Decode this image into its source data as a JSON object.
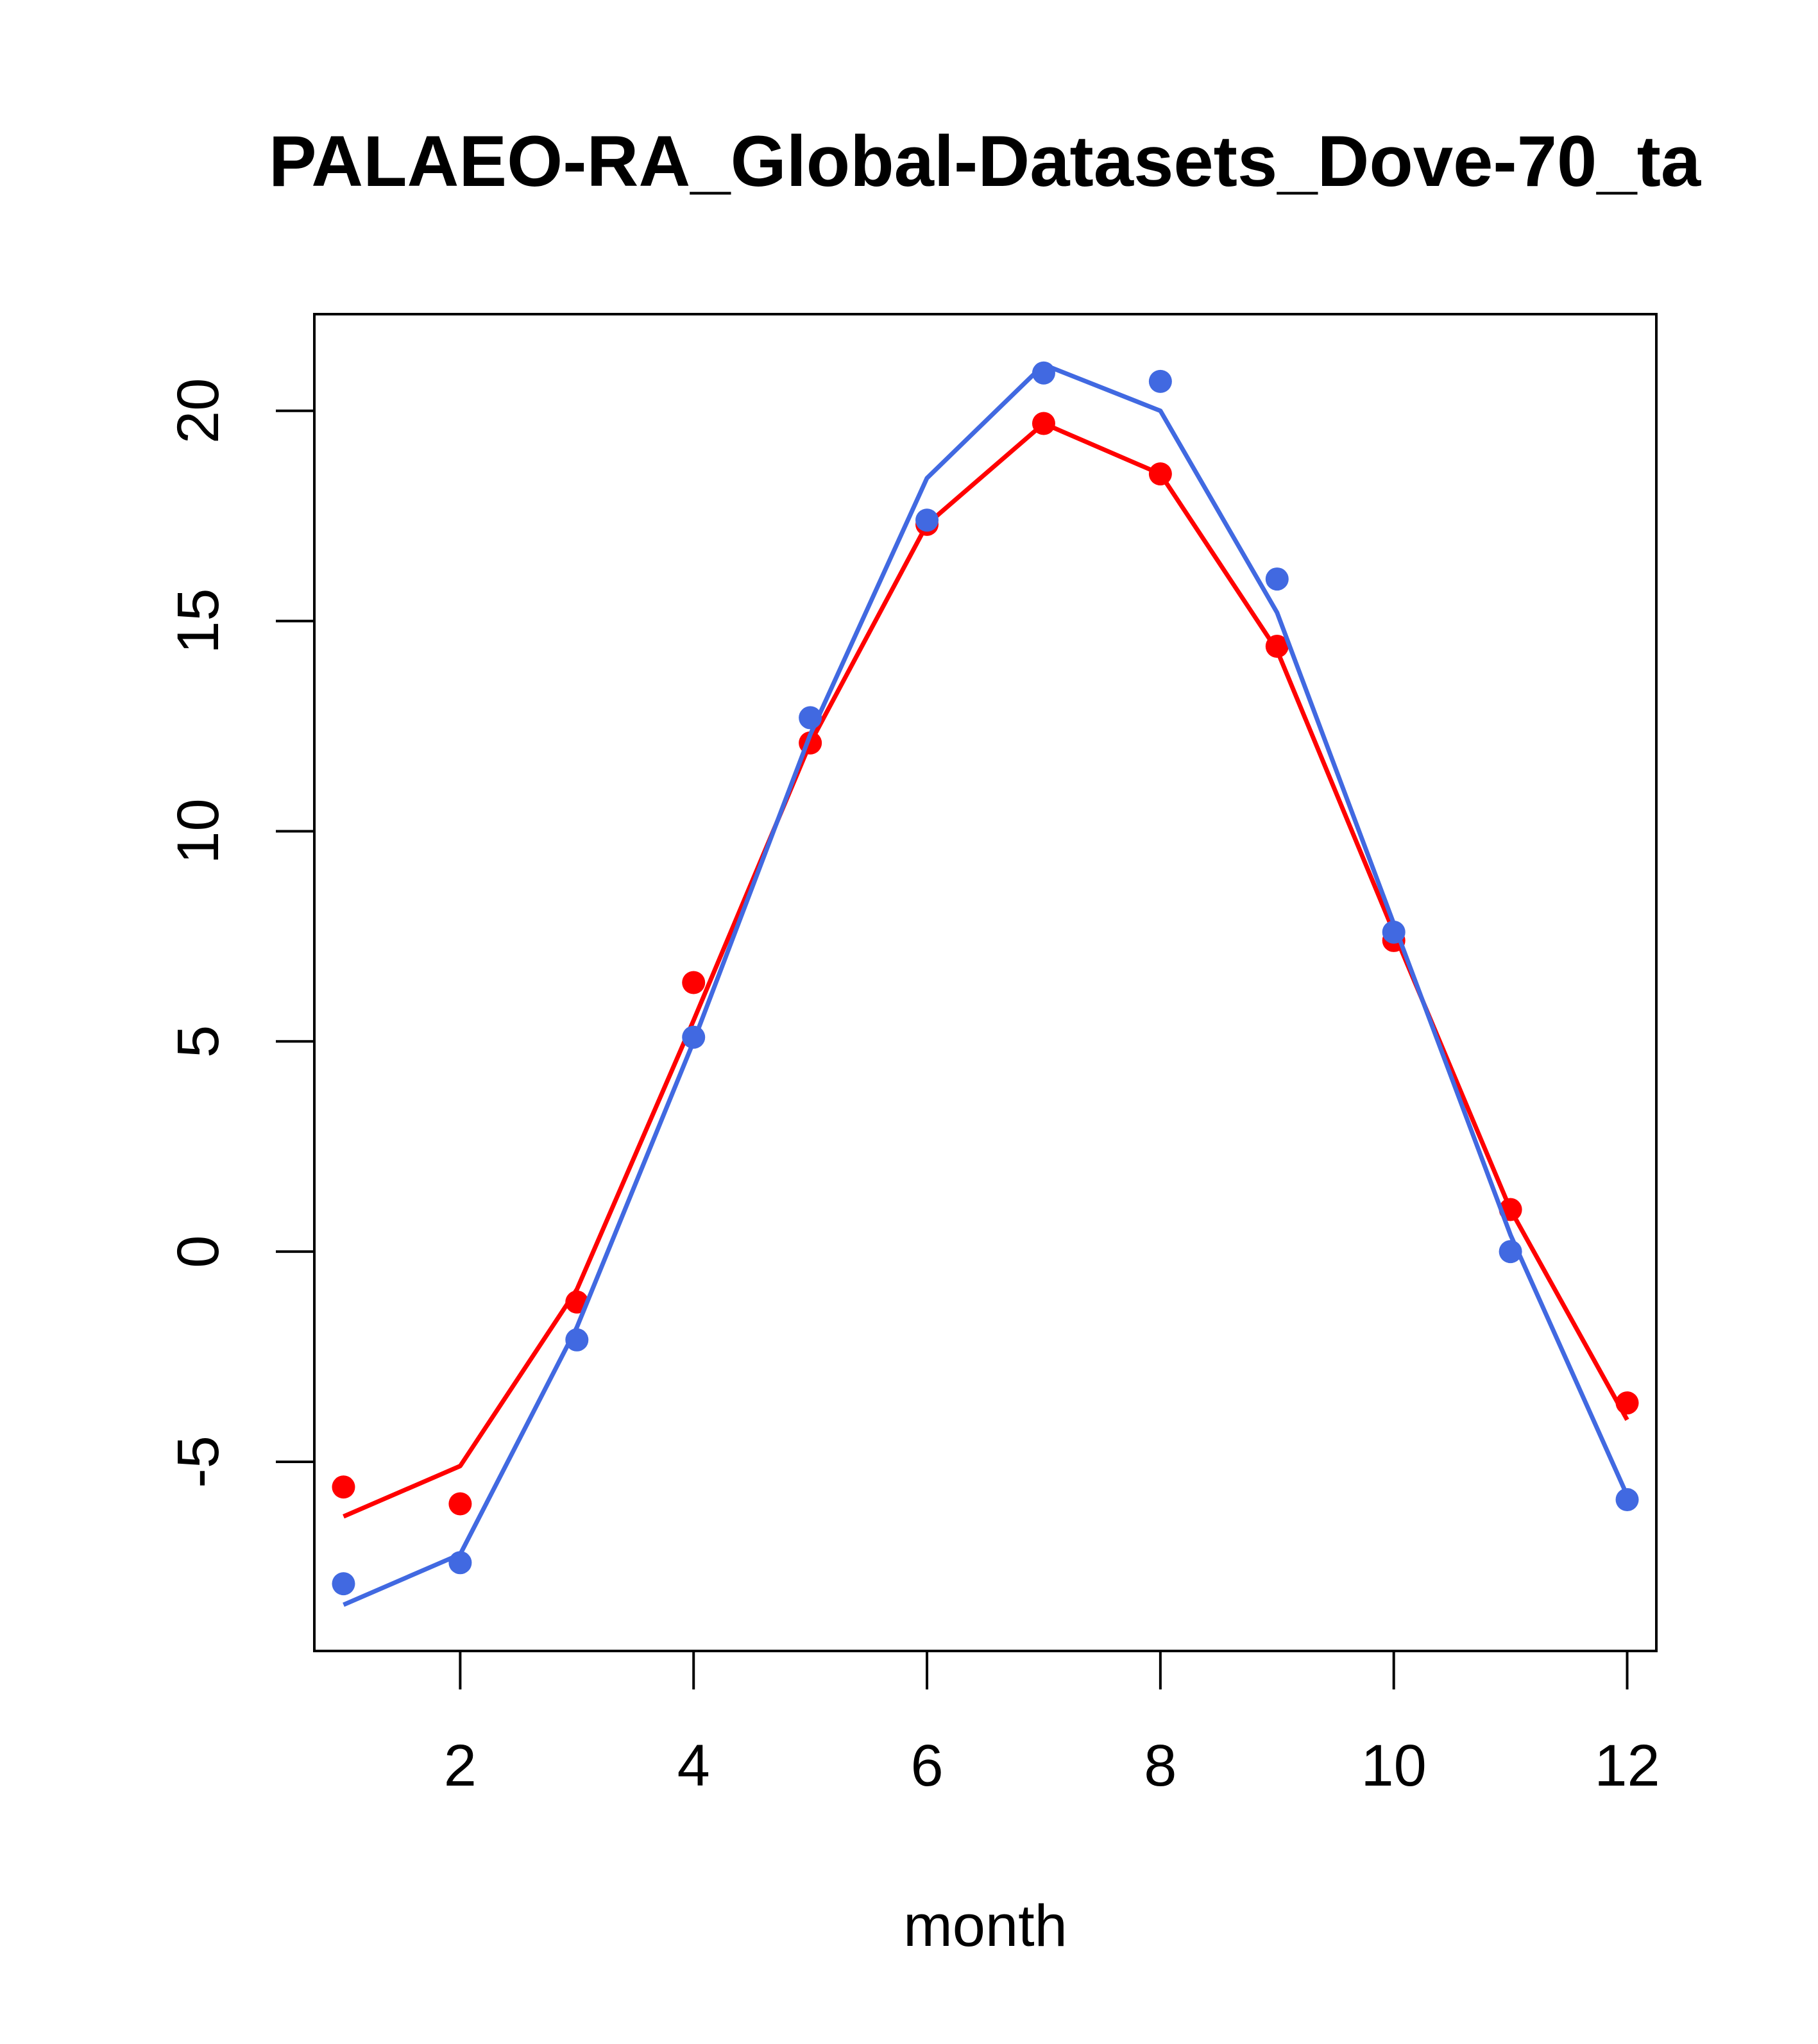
{
  "chart_data": {
    "type": "line",
    "title": "PALAEO-RA_Global-Datasets_Dove-70_ta",
    "xlabel": "month",
    "ylabel": "",
    "xlim": [
      0.75,
      12.25
    ],
    "ylim": [
      -9.5,
      22.3
    ],
    "x_ticks": [
      2,
      4,
      6,
      8,
      10,
      12
    ],
    "x_tick_labels": [
      "2",
      "4",
      "6",
      "8",
      "10",
      "12"
    ],
    "y_ticks": [
      -5,
      0,
      5,
      10,
      15,
      20
    ],
    "y_tick_labels": [
      "-5",
      "0",
      "5",
      "10",
      "15",
      "20"
    ],
    "x": [
      1,
      2,
      3,
      4,
      5,
      6,
      7,
      8,
      9,
      10,
      11,
      12
    ],
    "series": [
      {
        "color": "#ff0000",
        "line_values": [
          -6.3,
          -5.1,
          -0.9,
          5.5,
          12.1,
          17.3,
          19.7,
          18.5,
          14.3,
          7.6,
          1.0,
          -4.0
        ],
        "point_values": [
          -5.6,
          -6.0,
          -1.2,
          6.4,
          12.1,
          17.3,
          19.7,
          18.5,
          14.4,
          7.4,
          1.0,
          -3.6
        ]
      },
      {
        "color": "#4169e1",
        "line_values": [
          -8.4,
          -7.2,
          -1.8,
          5.0,
          12.3,
          18.4,
          21.1,
          20.0,
          15.2,
          7.8,
          0.4,
          -5.8
        ],
        "point_values": [
          -7.9,
          -7.4,
          -2.1,
          5.1,
          12.7,
          17.4,
          20.9,
          20.7,
          16.0,
          7.6,
          0.0,
          -5.9
        ]
      }
    ],
    "grid": false,
    "legend": "none"
  }
}
